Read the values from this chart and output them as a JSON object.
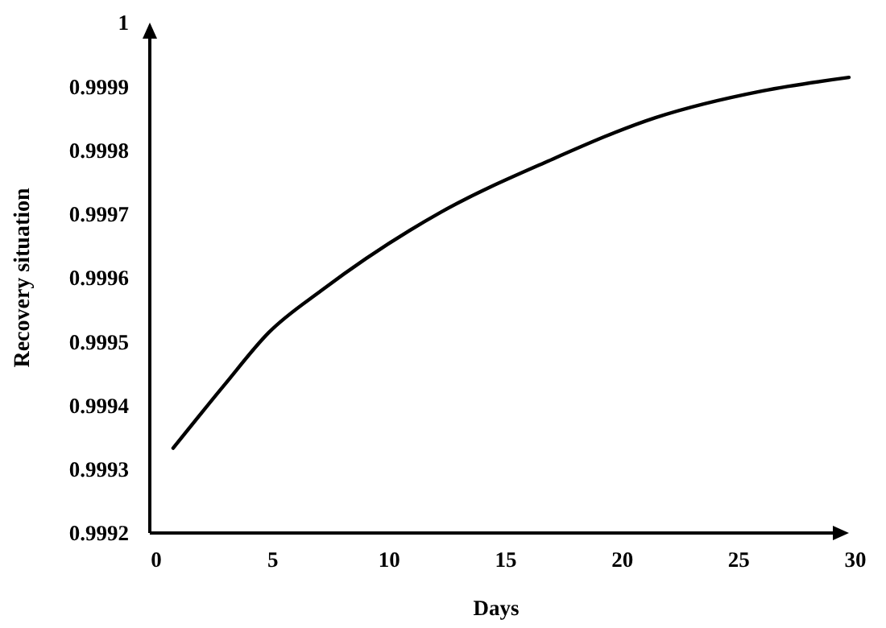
{
  "chart_data": {
    "type": "line",
    "xlabel": "Days",
    "ylabel": "Recovery situation",
    "x": [
      1,
      3.2,
      5.1,
      7.4,
      12.5,
      17.1,
      21.7,
      26.3,
      30
    ],
    "series": [
      {
        "color": "#000000",
        "values": [
          0.999333,
          0.999432,
          0.999514,
          0.999581,
          0.999703,
          0.999783,
          0.999851,
          0.999893,
          0.999914
        ]
      }
    ],
    "xlim": [
      0,
      30
    ],
    "xticks": [
      0,
      5,
      10,
      15,
      20,
      25,
      30
    ],
    "ylim": [
      0.9992,
      1
    ],
    "yticks": [
      0.9992,
      0.9993,
      0.9994,
      0.9995,
      0.9996,
      0.9997,
      0.9998,
      0.9999,
      1
    ],
    "grid": false,
    "marker": "none",
    "line_style": "solid"
  }
}
